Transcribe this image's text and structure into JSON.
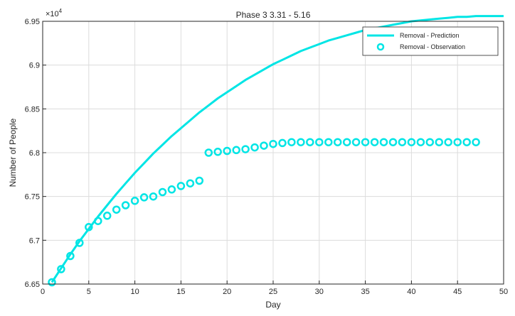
{
  "chart_data": {
    "type": "line",
    "title": "Phase 3 3.31 - 5.16",
    "xlabel": "Day",
    "ylabel": "Number of People",
    "y_exponent_label": "×10",
    "y_exponent_power": "4",
    "xlim": [
      0,
      50
    ],
    "ylim": [
      6.65,
      6.95
    ],
    "x_ticks": [
      0,
      5,
      10,
      15,
      20,
      25,
      30,
      35,
      40,
      45,
      50
    ],
    "x_tick_labels": [
      "0",
      "5",
      "10",
      "15",
      "20",
      "25",
      "30",
      "35",
      "40",
      "45",
      "50"
    ],
    "y_ticks": [
      6.65,
      6.7,
      6.75,
      6.8,
      6.85,
      6.9,
      6.95
    ],
    "y_tick_labels": [
      "6.65",
      "6.7",
      "6.75",
      "6.8",
      "6.85",
      "6.9",
      "6.95"
    ],
    "grid": true,
    "legend_position": "top-right",
    "series": [
      {
        "name": "Removal - Prediction",
        "style": "line",
        "color": "#00e5e5",
        "x": [
          1,
          2,
          3,
          4,
          5,
          6,
          7,
          8,
          9,
          10,
          11,
          12,
          13,
          14,
          15,
          16,
          17,
          18,
          19,
          20,
          21,
          22,
          23,
          24,
          25,
          26,
          27,
          28,
          29,
          30,
          31,
          32,
          33,
          34,
          35,
          36,
          37,
          38,
          39,
          40,
          41,
          42,
          43,
          44,
          45,
          46,
          47,
          48,
          49,
          50
        ],
        "values": [
          6.652,
          6.668,
          6.684,
          6.699,
          6.713,
          6.727,
          6.74,
          6.753,
          6.765,
          6.777,
          6.788,
          6.799,
          6.809,
          6.819,
          6.828,
          6.837,
          6.846,
          6.854,
          6.862,
          6.869,
          6.876,
          6.883,
          6.889,
          6.895,
          6.901,
          6.906,
          6.911,
          6.916,
          6.92,
          6.924,
          6.928,
          6.931,
          6.934,
          6.937,
          6.94,
          6.942,
          6.944,
          6.946,
          6.948,
          6.95,
          6.951,
          6.952,
          6.953,
          6.954,
          6.955,
          6.955,
          6.956,
          6.956,
          6.956,
          6.956
        ]
      },
      {
        "name": "Removal - Observation",
        "style": "marker",
        "marker": "circle",
        "color": "#00e5e5",
        "x": [
          1,
          2,
          3,
          4,
          5,
          6,
          7,
          8,
          9,
          10,
          11,
          12,
          13,
          14,
          15,
          16,
          17,
          18,
          19,
          20,
          21,
          22,
          23,
          24,
          25,
          26,
          27,
          28,
          29,
          30,
          31,
          32,
          33,
          34,
          35,
          36,
          37,
          38,
          39,
          40,
          41,
          42,
          43,
          44,
          45,
          46,
          47
        ],
        "values": [
          6.652,
          6.667,
          6.682,
          6.697,
          6.715,
          6.722,
          6.728,
          6.735,
          6.74,
          6.745,
          6.749,
          6.75,
          6.755,
          6.758,
          6.762,
          6.765,
          6.768,
          6.8,
          6.801,
          6.802,
          6.803,
          6.804,
          6.806,
          6.808,
          6.81,
          6.811,
          6.812,
          6.812,
          6.812,
          6.812,
          6.812,
          6.812,
          6.812,
          6.812,
          6.812,
          6.812,
          6.812,
          6.812,
          6.812,
          6.812,
          6.812,
          6.812,
          6.812,
          6.812,
          6.812,
          6.812,
          6.812
        ]
      }
    ]
  }
}
